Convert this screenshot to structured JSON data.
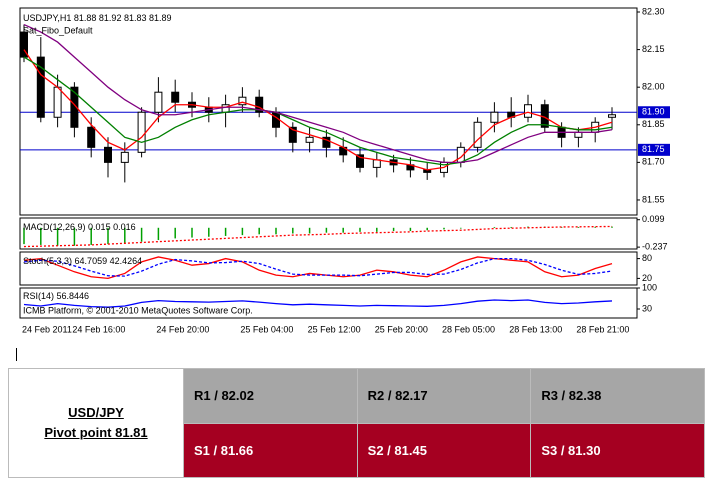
{
  "chart_data": {
    "type": "candlestick",
    "symbol": "USDJPY,H1",
    "quote": [
      81.88,
      81.92,
      81.83,
      81.89
    ],
    "template": "Sat_Fibo_Default",
    "copyright": "ICMB Platform, © 2001-2010 MetaQuotes Software Corp.",
    "categories": [
      "24 Feb 2011",
      null,
      null,
      "24 Feb 16:00",
      null,
      null,
      null,
      null,
      "24 Feb 20:00",
      null,
      null,
      null,
      null,
      "25 Feb 04:00",
      null,
      null,
      null,
      "25 Feb 12:00",
      null,
      null,
      null,
      "25 Feb 20:00",
      null,
      null,
      null,
      "28 Feb 05:00",
      null,
      null,
      null,
      "28 Feb 13:00",
      null,
      null,
      null,
      "28 Feb 21:00",
      null,
      null
    ],
    "ohlc": [
      [
        82.22,
        82.25,
        82.1,
        82.12
      ],
      [
        82.12,
        82.2,
        81.86,
        81.88
      ],
      [
        81.88,
        82.05,
        81.84,
        82.0
      ],
      [
        82.0,
        82.02,
        81.8,
        81.84
      ],
      [
        81.84,
        81.88,
        81.72,
        81.76
      ],
      [
        81.76,
        81.8,
        81.64,
        81.7
      ],
      [
        81.7,
        81.78,
        81.62,
        81.74
      ],
      [
        81.74,
        81.92,
        81.72,
        81.9
      ],
      [
        81.9,
        82.04,
        81.86,
        81.98
      ],
      [
        81.98,
        82.03,
        81.9,
        81.94
      ],
      [
        81.94,
        81.98,
        81.88,
        81.92
      ],
      [
        81.92,
        81.96,
        81.86,
        81.9
      ],
      [
        81.9,
        81.97,
        81.84,
        81.93
      ],
      [
        81.93,
        82.0,
        81.9,
        81.96
      ],
      [
        81.96,
        81.99,
        81.88,
        81.9
      ],
      [
        81.9,
        81.92,
        81.8,
        81.84
      ],
      [
        81.84,
        81.86,
        81.74,
        81.78
      ],
      [
        81.78,
        81.84,
        81.74,
        81.8
      ],
      [
        81.8,
        81.83,
        81.72,
        81.76
      ],
      [
        81.76,
        81.8,
        81.7,
        81.73
      ],
      [
        81.73,
        81.76,
        81.66,
        81.68
      ],
      [
        81.68,
        81.74,
        81.64,
        81.71
      ],
      [
        81.71,
        81.73,
        81.66,
        81.69
      ],
      [
        81.69,
        81.72,
        81.64,
        81.67
      ],
      [
        81.67,
        81.7,
        81.63,
        81.66
      ],
      [
        81.66,
        81.72,
        81.64,
        81.7
      ],
      [
        81.7,
        81.78,
        81.68,
        81.76
      ],
      [
        81.76,
        81.88,
        81.74,
        81.86
      ],
      [
        81.86,
        81.94,
        81.82,
        81.9
      ],
      [
        81.9,
        81.96,
        81.84,
        81.88
      ],
      [
        81.88,
        81.97,
        81.86,
        81.93
      ],
      [
        81.93,
        81.95,
        81.82,
        81.84
      ],
      [
        81.84,
        81.86,
        81.76,
        81.8
      ],
      [
        81.8,
        81.84,
        81.76,
        81.82
      ],
      [
        81.82,
        81.88,
        81.78,
        81.86
      ],
      [
        81.88,
        81.92,
        81.83,
        81.89
      ]
    ],
    "bull_color": "#ffffff",
    "bear_color": "#000000",
    "series": [
      {
        "color": "#ff0000",
        "values": [
          82.15,
          82.05,
          82.0,
          81.93,
          81.85,
          81.78,
          81.75,
          81.8,
          81.88,
          81.93,
          81.93,
          81.92,
          81.92,
          81.94,
          81.92,
          81.88,
          81.83,
          81.81,
          81.79,
          81.76,
          81.72,
          81.71,
          81.7,
          81.69,
          81.67,
          81.68,
          81.72,
          81.79,
          81.85,
          81.88,
          81.9,
          81.88,
          81.84,
          81.83,
          81.84,
          81.86
        ]
      },
      {
        "color": "#008000",
        "values": [
          82.12,
          82.08,
          82.03,
          81.98,
          81.92,
          81.86,
          81.8,
          81.78,
          81.8,
          81.84,
          81.87,
          81.89,
          81.9,
          81.91,
          81.91,
          81.9,
          81.87,
          81.84,
          81.82,
          81.79,
          81.76,
          81.74,
          81.72,
          81.71,
          81.7,
          81.69,
          81.7,
          81.73,
          81.78,
          81.82,
          81.85,
          81.85,
          81.84,
          81.83,
          81.83,
          81.84
        ]
      },
      {
        "color": "#800080",
        "values": [
          82.25,
          82.22,
          82.18,
          82.12,
          82.06,
          82.0,
          81.95,
          81.91,
          81.89,
          81.89,
          81.9,
          81.91,
          81.92,
          81.92,
          81.91,
          81.9,
          81.88,
          81.86,
          81.84,
          81.82,
          81.79,
          81.77,
          81.75,
          81.73,
          81.71,
          81.7,
          81.7,
          81.71,
          81.74,
          81.77,
          81.8,
          81.82,
          81.82,
          81.82,
          81.82,
          81.83
        ]
      }
    ],
    "hlines": [
      {
        "value": 81.9,
        "label": "81.90",
        "color": "#0000cc"
      },
      {
        "value": 81.75,
        "label": "81.75",
        "color": "#0000cc"
      }
    ],
    "ylim": [
      81.49,
      82.316
    ],
    "yticks": [
      {
        "value": 82.3,
        "label": "82.30"
      },
      82.15,
      {
        "value": 82.0,
        "label": "82.00"
      },
      81.85,
      {
        "value": 81.7,
        "label": "81.70"
      },
      81.55
    ],
    "macd": {
      "label": "MACD(12,26,9)",
      "readout": [
        0.015,
        0.016
      ],
      "hist_color": "#00a000",
      "signal_color": "#ff0000",
      "hist": [
        -0.2,
        -0.21,
        -0.22,
        -0.22,
        -0.21,
        -0.2,
        -0.19,
        -0.17,
        -0.15,
        -0.13,
        -0.12,
        -0.11,
        -0.1,
        -0.09,
        -0.08,
        -0.08,
        -0.07,
        -0.07,
        -0.06,
        -0.06,
        -0.05,
        -0.05,
        -0.04,
        -0.04,
        -0.03,
        -0.02,
        -0.01,
        0.0,
        0.01,
        0.01,
        0.015,
        0.015,
        0.01,
        0.01,
        0.012,
        0.015
      ],
      "signal": [
        -0.23,
        -0.225,
        -0.22,
        -0.215,
        -0.21,
        -0.2,
        -0.19,
        -0.18,
        -0.17,
        -0.16,
        -0.15,
        -0.14,
        -0.13,
        -0.12,
        -0.11,
        -0.1,
        -0.09,
        -0.085,
        -0.08,
        -0.07,
        -0.065,
        -0.06,
        -0.055,
        -0.05,
        -0.04,
        -0.035,
        -0.03,
        -0.02,
        -0.01,
        -0.005,
        0.0,
        0.005,
        0.01,
        0.012,
        0.014,
        0.016
      ],
      "ylim": [
        -0.26,
        0.12
      ],
      "yticks": [
        0.099,
        -0.237
      ]
    },
    "stoch": {
      "label": "Stoch(5,3,3)",
      "readout": [
        64.7059,
        42.4264
      ],
      "main_color": "#ff0000",
      "signal_color": "#0000ff",
      "main": [
        75,
        80,
        60,
        40,
        25,
        20,
        35,
        70,
        85,
        75,
        60,
        65,
        80,
        70,
        45,
        30,
        25,
        35,
        30,
        25,
        30,
        45,
        40,
        30,
        25,
        45,
        70,
        85,
        80,
        75,
        70,
        40,
        25,
        30,
        50,
        64.7
      ],
      "signal": [
        70,
        75,
        72,
        58,
        42,
        28,
        27,
        42,
        63,
        77,
        73,
        67,
        68,
        72,
        65,
        48,
        33,
        30,
        30,
        30,
        28,
        33,
        38,
        38,
        32,
        33,
        47,
        67,
        80,
        80,
        75,
        62,
        45,
        32,
        35,
        42.4
      ],
      "ylim": [
        0,
        100
      ],
      "yticks": [
        80,
        20
      ]
    },
    "rsi": {
      "label": "RSI(14)",
      "readout": [
        56.8446
      ],
      "color": "#0000ff",
      "values": [
        45,
        40,
        48,
        42,
        38,
        36,
        40,
        52,
        58,
        55,
        54,
        53,
        55,
        57,
        53,
        48,
        44,
        46,
        44,
        42,
        40,
        42,
        41,
        40,
        39,
        42,
        48,
        56,
        60,
        58,
        60,
        52,
        48,
        50,
        54,
        56.8
      ],
      "ylim": [
        0,
        100
      ],
      "yticks": [
        100,
        30
      ]
    }
  },
  "table": {
    "pair": "USD/JPY",
    "pivot": "Pivot point 81.81",
    "rows": [
      [
        "R1 / 82.02",
        "R2 / 82.17",
        "R3 / 82.38"
      ],
      [
        "S1 / 81.66",
        "S2 / 81.45",
        "S3 / 81.30"
      ]
    ]
  }
}
